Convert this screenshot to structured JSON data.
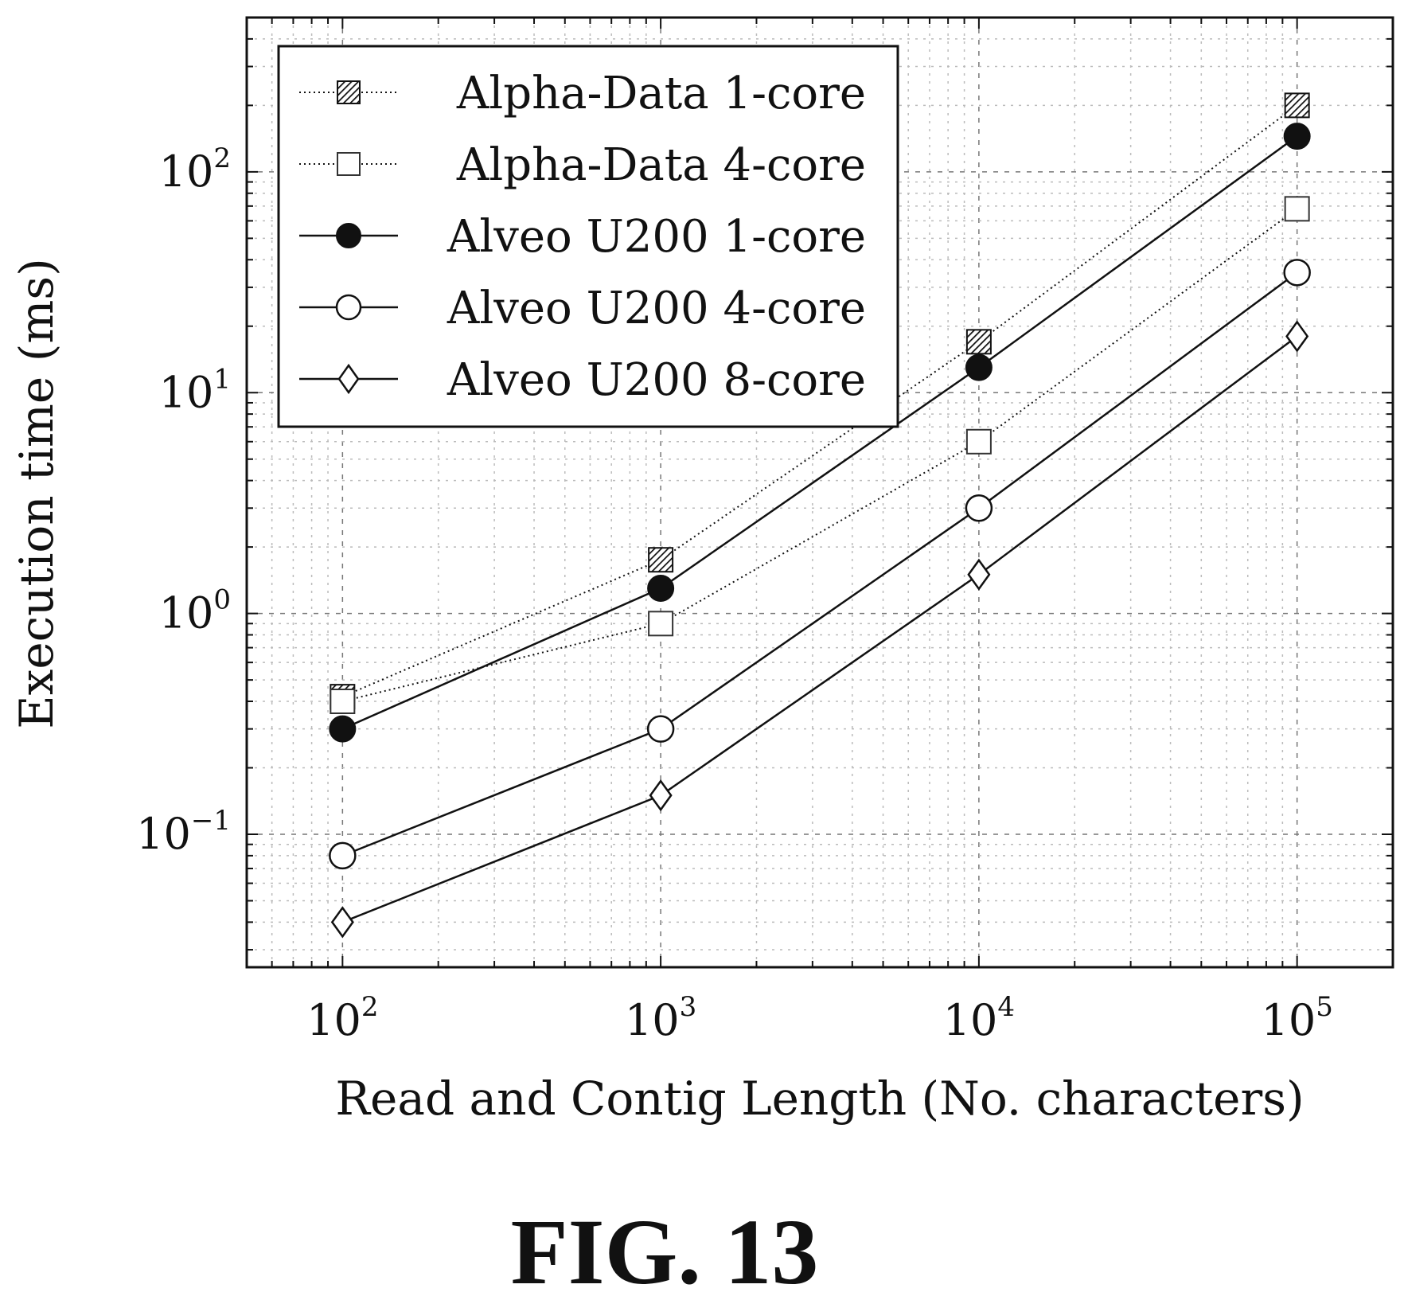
{
  "figure": {
    "caption": "FIG. 13"
  },
  "chart_data": {
    "type": "line",
    "xlabel": "Read and Contig Length (No. characters)",
    "ylabel": "Execution time (ms)",
    "xscale": "log",
    "yscale": "log",
    "xlim": [
      50,
      200000
    ],
    "ylim": [
      0.025,
      500
    ],
    "x": [
      100,
      1000,
      10000,
      100000
    ],
    "x_ticks": [
      {
        "base": "10",
        "exp": "2"
      },
      {
        "base": "10",
        "exp": "3"
      },
      {
        "base": "10",
        "exp": "4"
      },
      {
        "base": "10",
        "exp": "5"
      }
    ],
    "y_ticks": [
      {
        "value": 0.1,
        "base": "10",
        "exp": "−1"
      },
      {
        "value": 1,
        "base": "10",
        "exp": "0"
      },
      {
        "value": 10,
        "base": "10",
        "exp": "1"
      },
      {
        "value": 100,
        "base": "10",
        "exp": "2"
      }
    ],
    "grid": true,
    "legend_position": "top-left",
    "series": [
      {
        "name": "Alpha-Data 1-core",
        "marker": "square-hatched",
        "line": "dotted",
        "values": [
          0.42,
          1.75,
          17,
          200
        ]
      },
      {
        "name": "Alpha-Data 4-core",
        "marker": "square-open",
        "line": "dotted",
        "values": [
          0.4,
          0.9,
          6,
          68
        ]
      },
      {
        "name": "Alveo U200 1-core",
        "marker": "circle-filled",
        "line": "solid",
        "values": [
          0.3,
          1.3,
          13,
          145
        ]
      },
      {
        "name": "Alveo U200 4-core",
        "marker": "circle-open",
        "line": "solid",
        "values": [
          0.08,
          0.3,
          3,
          35
        ]
      },
      {
        "name": "Alveo U200 8-core",
        "marker": "diamond-open",
        "line": "solid",
        "values": [
          0.04,
          0.15,
          1.5,
          18
        ]
      }
    ]
  }
}
